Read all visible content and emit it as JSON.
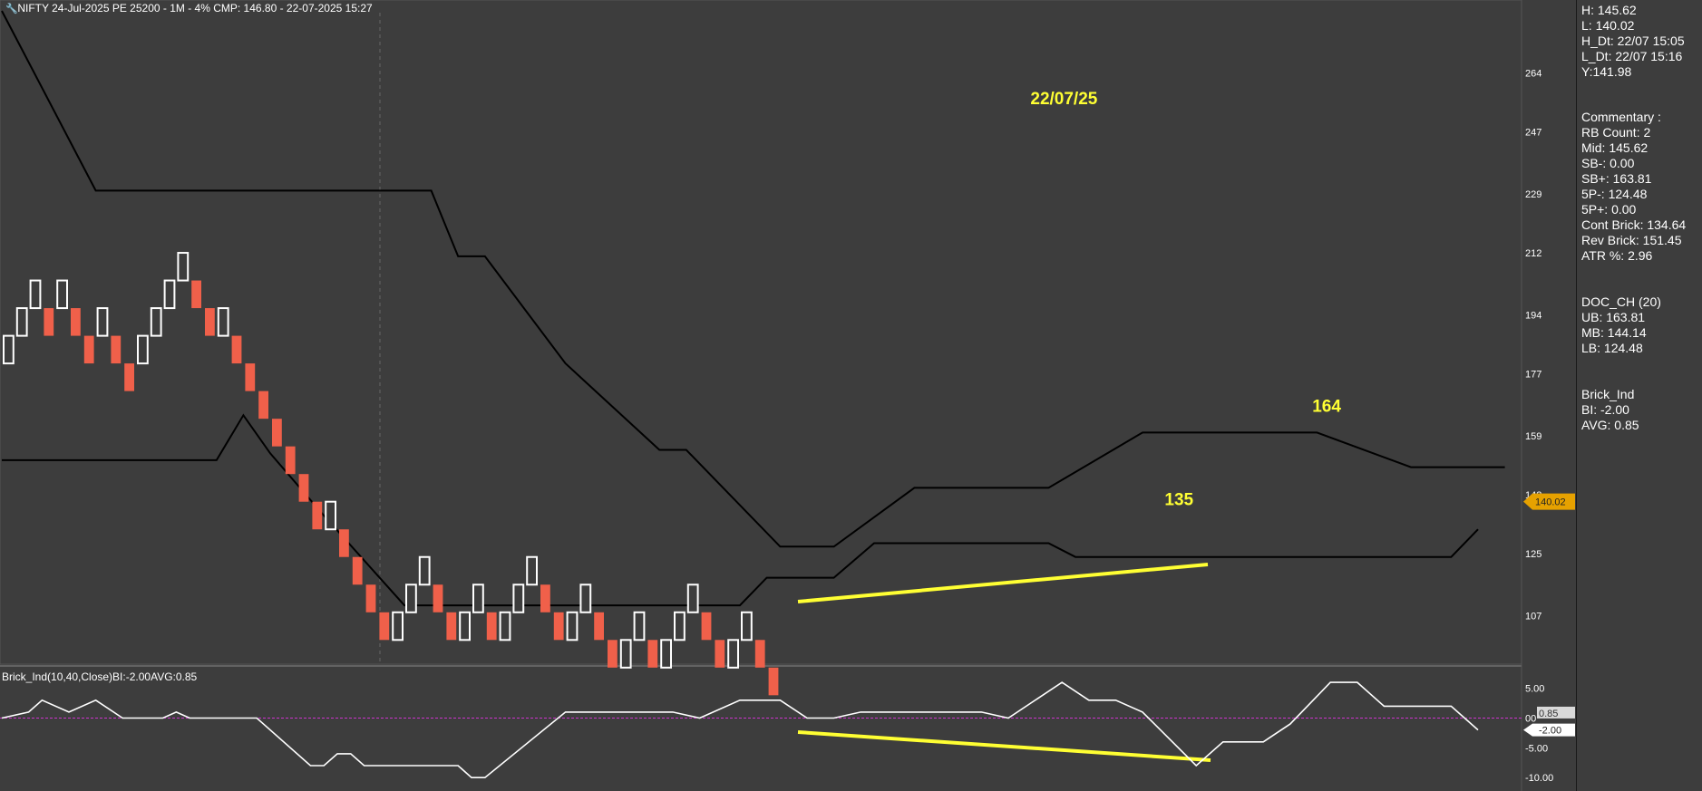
{
  "title": "NIFTY 24-Jul-2025 PE 25200 - 1M - 4% CMP: 146.80 - 22-07-2025 15:27",
  "indicator_title": "Brick_Ind(10,40,Close)BI:-2.00AVG:0.85",
  "price_tag": "140.02",
  "ind_tags": {
    "avg": "0.85",
    "bi": "-2.00",
    "zero": "00"
  },
  "right_panel": {
    "lines": [
      "H: 145.62",
      "L: 140.02",
      "H_Dt: 22/07 15:05",
      "L_Dt: 22/07 15:16",
      "Y:141.98"
    ],
    "commentary": [
      "Commentary :",
      "RB Count: 2",
      "Mid: 145.62",
      "SB-: 0.00",
      "SB+: 163.81",
      "5P-: 124.48",
      "5P+: 0.00",
      "Cont Brick: 134.64",
      "Rev Brick: 151.45",
      "ATR %: 2.96"
    ],
    "doc_ch": [
      "DOC_CH (20)",
      "UB: 163.81",
      "MB: 144.14",
      "LB: 124.48"
    ],
    "brick_ind": [
      "Brick_Ind",
      "BI: -2.00",
      "AVG: 0.85"
    ]
  },
  "annotations": [
    {
      "text": "22/07/25",
      "x": 78,
      "y": 255
    },
    {
      "text": "164",
      "x": 99,
      "y": 166
    },
    {
      "text": "135",
      "x": 88,
      "y": 139
    }
  ],
  "colors": {
    "background": "#3d3d3d",
    "up_brick": "#ffffff",
    "down_brick": "#f0604a",
    "channel": "#000000",
    "highlight": "#ffff33",
    "zero_line": "#cc33cc",
    "price_tag": "#e6a100"
  },
  "chart_data": [
    {
      "type": "renko",
      "title": "NIFTY 24-Jul-2025 PE 25200 - 1M - 4% CMP: 146.80 - 22-07-2025 15:27",
      "ylim": [
        93,
        282
      ],
      "yticks": [
        107,
        125,
        142,
        159,
        177,
        194,
        212,
        229,
        247,
        264
      ],
      "x_range": [
        0,
        112
      ],
      "brick_size": 8,
      "bricks": [
        {
          "i": 0,
          "dir": "up",
          "low": 180,
          "high": 188
        },
        {
          "i": 1,
          "dir": "up",
          "low": 188,
          "high": 196
        },
        {
          "i": 2,
          "dir": "up",
          "low": 196,
          "high": 204
        },
        {
          "i": 3,
          "dir": "down",
          "low": 188,
          "high": 196
        },
        {
          "i": 4,
          "dir": "up",
          "low": 196,
          "high": 204
        },
        {
          "i": 5,
          "dir": "down",
          "low": 188,
          "high": 196
        },
        {
          "i": 6,
          "dir": "down",
          "low": 180,
          "high": 188
        },
        {
          "i": 7,
          "dir": "up",
          "low": 188,
          "high": 196
        },
        {
          "i": 8,
          "dir": "down",
          "low": 180,
          "high": 188
        },
        {
          "i": 9,
          "dir": "down",
          "low": 172,
          "high": 180
        },
        {
          "i": 10,
          "dir": "up",
          "low": 180,
          "high": 188
        },
        {
          "i": 11,
          "dir": "up",
          "low": 188,
          "high": 196
        },
        {
          "i": 12,
          "dir": "up",
          "low": 196,
          "high": 204
        },
        {
          "i": 13,
          "dir": "up",
          "low": 204,
          "high": 212
        },
        {
          "i": 14,
          "dir": "down",
          "low": 196,
          "high": 204
        },
        {
          "i": 15,
          "dir": "down",
          "low": 188,
          "high": 196
        },
        {
          "i": 16,
          "dir": "up",
          "low": 188,
          "high": 196
        },
        {
          "i": 17,
          "dir": "down",
          "low": 180,
          "high": 188
        },
        {
          "i": 18,
          "dir": "down",
          "low": 172,
          "high": 180
        },
        {
          "i": 19,
          "dir": "down",
          "low": 164,
          "high": 172
        },
        {
          "i": 20,
          "dir": "down",
          "low": 156,
          "high": 164
        },
        {
          "i": 21,
          "dir": "down",
          "low": 148,
          "high": 156
        },
        {
          "i": 22,
          "dir": "down",
          "low": 140,
          "high": 148
        },
        {
          "i": 23,
          "dir": "down",
          "low": 132,
          "high": 140
        },
        {
          "i": 24,
          "dir": "up",
          "low": 132,
          "high": 140
        },
        {
          "i": 25,
          "dir": "down",
          "low": 124,
          "high": 132
        },
        {
          "i": 26,
          "dir": "down",
          "low": 116,
          "high": 124
        },
        {
          "i": 27,
          "dir": "down",
          "low": 108,
          "high": 116
        },
        {
          "i": 28,
          "dir": "down",
          "low": 100,
          "high": 108
        },
        {
          "i": 29,
          "dir": "up",
          "low": 100,
          "high": 108
        },
        {
          "i": 30,
          "dir": "up",
          "low": 108,
          "high": 116
        },
        {
          "i": 31,
          "dir": "up",
          "low": 116,
          "high": 124
        },
        {
          "i": 32,
          "dir": "down",
          "low": 108,
          "high": 116
        },
        {
          "i": 33,
          "dir": "down",
          "low": 100,
          "high": 108
        },
        {
          "i": 34,
          "dir": "up",
          "low": 100,
          "high": 108
        },
        {
          "i": 35,
          "dir": "up",
          "low": 108,
          "high": 116
        },
        {
          "i": 36,
          "dir": "down",
          "low": 100,
          "high": 108
        },
        {
          "i": 37,
          "dir": "up",
          "low": 100,
          "high": 108
        },
        {
          "i": 38,
          "dir": "up",
          "low": 108,
          "high": 116
        },
        {
          "i": 39,
          "dir": "up",
          "low": 116,
          "high": 124
        },
        {
          "i": 40,
          "dir": "down",
          "low": 108,
          "high": 116
        },
        {
          "i": 41,
          "dir": "down",
          "low": 100,
          "high": 108
        },
        {
          "i": 42,
          "dir": "up",
          "low": 100,
          "high": 108
        },
        {
          "i": 43,
          "dir": "up",
          "low": 108,
          "high": 116
        },
        {
          "i": 44,
          "dir": "down",
          "low": 100,
          "high": 108
        },
        {
          "i": 45,
          "dir": "down",
          "low": 92,
          "high": 100
        },
        {
          "i": 46,
          "dir": "up",
          "low": 92,
          "high": 100
        },
        {
          "i": 47,
          "dir": "up",
          "low": 100,
          "high": 108
        },
        {
          "i": 48,
          "dir": "down",
          "low": 92,
          "high": 100
        },
        {
          "i": 49,
          "dir": "up",
          "low": 92,
          "high": 100
        },
        {
          "i": 50,
          "dir": "up",
          "low": 100,
          "high": 108
        },
        {
          "i": 51,
          "dir": "up",
          "low": 108,
          "high": 116
        },
        {
          "i": 52,
          "dir": "down",
          "low": 100,
          "high": 108
        },
        {
          "i": 53,
          "dir": "down",
          "low": 92,
          "high": 100
        },
        {
          "i": 54,
          "dir": "up",
          "low": 92,
          "high": 100
        },
        {
          "i": 55,
          "dir": "up",
          "low": 100,
          "high": 108
        },
        {
          "i": 56,
          "dir": "down",
          "low": 92,
          "high": 100
        },
        {
          "i": 57,
          "dir": "down",
          "low": 84,
          "high": 92
        }
      ],
      "channel_upper": [
        [
          0,
          282
        ],
        [
          7,
          230
        ],
        [
          13,
          230
        ],
        [
          32,
          230
        ],
        [
          34,
          211
        ],
        [
          36,
          211
        ],
        [
          42,
          180
        ],
        [
          49,
          155
        ],
        [
          50,
          155
        ],
        [
          51,
          155
        ],
        [
          58,
          127
        ],
        [
          62,
          127
        ],
        [
          68,
          144
        ],
        [
          78,
          144
        ],
        [
          85,
          160
        ],
        [
          98,
          160
        ],
        [
          105,
          150
        ],
        [
          112,
          150
        ]
      ],
      "channel_lower": [
        [
          0,
          152
        ],
        [
          16,
          152
        ],
        [
          18,
          165
        ],
        [
          20,
          154
        ],
        [
          24,
          136
        ],
        [
          30,
          110
        ],
        [
          55,
          110
        ],
        [
          57,
          118
        ],
        [
          62,
          118
        ],
        [
          65,
          128
        ],
        [
          78,
          128
        ],
        [
          80,
          124
        ],
        [
          108,
          124
        ],
        [
          110,
          132
        ]
      ]
    },
    {
      "type": "line",
      "title": "Brick_Ind(10,40,Close)BI:-2.00AVG:0.85",
      "ylim": [
        -11.5,
        8
      ],
      "yticks": [
        5,
        0,
        -5,
        -10
      ],
      "series": [
        {
          "values": [
            [
              0,
              0
            ],
            [
              2,
              1
            ],
            [
              3,
              3
            ],
            [
              5,
              1
            ],
            [
              7,
              3
            ],
            [
              9,
              0
            ],
            [
              12,
              0
            ],
            [
              13,
              1
            ],
            [
              14,
              0
            ],
            [
              19,
              0
            ],
            [
              23,
              -8
            ],
            [
              24,
              -8
            ],
            [
              25,
              -6
            ],
            [
              26,
              -6
            ],
            [
              27,
              -8
            ],
            [
              34,
              -8
            ],
            [
              35,
              -10
            ],
            [
              36,
              -10
            ],
            [
              42,
              1
            ],
            [
              50,
              1
            ],
            [
              52,
              0
            ],
            [
              55,
              3
            ],
            [
              58,
              3
            ],
            [
              60,
              0
            ],
            [
              62,
              0
            ],
            [
              64,
              1
            ],
            [
              66,
              1
            ],
            [
              73,
              1
            ],
            [
              75,
              0
            ],
            [
              79,
              6
            ],
            [
              81,
              3
            ],
            [
              83,
              3
            ],
            [
              85,
              1
            ],
            [
              89,
              -8
            ],
            [
              91,
              -4
            ],
            [
              94,
              -4
            ],
            [
              96,
              -1
            ],
            [
              99,
              6
            ],
            [
              101,
              6
            ],
            [
              103,
              2
            ],
            [
              108,
              2
            ],
            [
              110,
              -2
            ]
          ]
        }
      ],
      "avg": 0.85,
      "bi": -2.0
    }
  ]
}
